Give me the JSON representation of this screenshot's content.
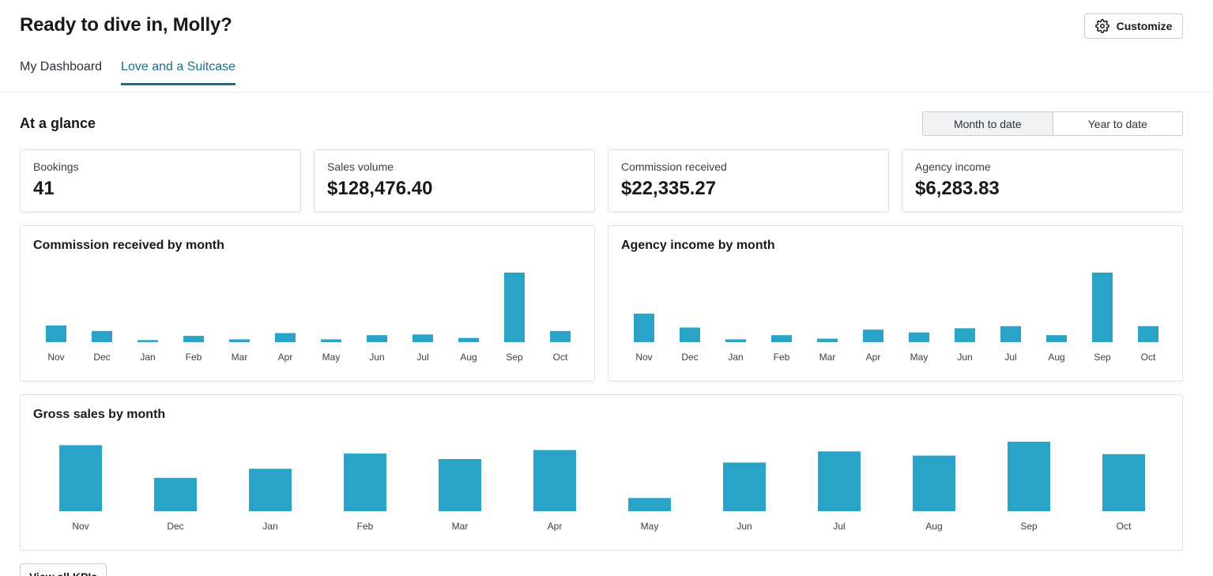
{
  "header": {
    "title": "Ready to dive in, Molly?",
    "customize_label": "Customize"
  },
  "tabs": [
    {
      "label": "My Dashboard",
      "active": false
    },
    {
      "label": "Love and a Suitcase",
      "active": true
    }
  ],
  "glance": {
    "title": "At a glance",
    "range_options": [
      "Month to date",
      "Year to date"
    ],
    "selected_range": "Month to date"
  },
  "kpis": [
    {
      "label": "Bookings",
      "value": "41"
    },
    {
      "label": "Sales volume",
      "value": "$128,476.40"
    },
    {
      "label": "Commission received",
      "value": "$22,335.27"
    },
    {
      "label": "Agency income",
      "value": "$6,283.83"
    }
  ],
  "colors": {
    "bar": "#2aa3c8",
    "accent": "#1a6f8e"
  },
  "chart_data": [
    {
      "id": "commission",
      "type": "bar",
      "title": "Commission received by month",
      "categories": [
        "Nov",
        "Dec",
        "Jan",
        "Feb",
        "Mar",
        "Apr",
        "May",
        "Jun",
        "Jul",
        "Aug",
        "Sep",
        "Oct"
      ],
      "values": [
        24,
        16,
        3,
        9,
        4,
        13,
        4,
        10,
        11,
        6,
        100,
        16
      ],
      "ylim": [
        0,
        100
      ],
      "xlabel": "",
      "ylabel": ""
    },
    {
      "id": "agency",
      "type": "bar",
      "title": "Agency income by month",
      "categories": [
        "Nov",
        "Dec",
        "Jan",
        "Feb",
        "Mar",
        "Apr",
        "May",
        "Jun",
        "Jul",
        "Aug",
        "Sep",
        "Oct"
      ],
      "values": [
        41,
        21,
        4,
        10,
        5,
        18,
        14,
        20,
        23,
        10,
        100,
        23
      ],
      "ylim": [
        0,
        100
      ],
      "xlabel": "",
      "ylabel": ""
    },
    {
      "id": "gross",
      "type": "bar",
      "title": "Gross sales by month",
      "categories": [
        "Nov",
        "Dec",
        "Jan",
        "Feb",
        "Mar",
        "Apr",
        "May",
        "Jun",
        "Jul",
        "Aug",
        "Sep",
        "Oct"
      ],
      "values": [
        95,
        48,
        61,
        83,
        75,
        88,
        19,
        70,
        86,
        80,
        100,
        82
      ],
      "ylim": [
        0,
        100
      ],
      "xlabel": "",
      "ylabel": ""
    }
  ],
  "footer": {
    "view_all_label": "View all KPIs"
  }
}
